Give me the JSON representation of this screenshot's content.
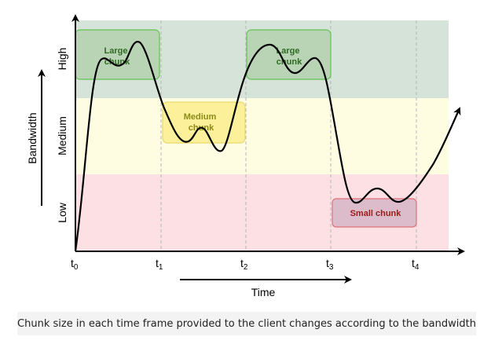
{
  "bands": [
    {
      "id": "high",
      "label": "High",
      "color": "#d6e3d9"
    },
    {
      "id": "medium",
      "label": "Medium",
      "color": "#fefde2"
    },
    {
      "id": "low",
      "label": "Low",
      "color": "#fde0e3"
    }
  ],
  "y_axis_title": "Bandwidth",
  "x_axis_title": "Time",
  "ticks": [
    {
      "base": "t",
      "sub": "0"
    },
    {
      "base": "t",
      "sub": "1"
    },
    {
      "base": "t",
      "sub": "2"
    },
    {
      "base": "t",
      "sub": "3"
    },
    {
      "base": "t",
      "sub": "4"
    }
  ],
  "chunks": [
    {
      "lines": [
        "Large",
        "chunk"
      ],
      "fill": "#b9d4b5",
      "stroke": "#63c352",
      "text_color": "#2e6b22"
    },
    {
      "lines": [
        "Medium",
        "chunk"
      ],
      "fill": "#fcf19a",
      "stroke": "#e7d96a",
      "text_color": "#8e8a18"
    },
    {
      "lines": [
        "Large",
        "chunk"
      ],
      "fill": "#b9d4b5",
      "stroke": "#63c352",
      "text_color": "#2e6b22"
    },
    {
      "lines": [
        "Small chunk"
      ],
      "fill": "#dcbccb",
      "stroke": "#e0707a",
      "text_color": "#9b1c1c"
    }
  ],
  "caption": "Chunk size in each time frame provided to the client changes according to the bandwidth"
}
